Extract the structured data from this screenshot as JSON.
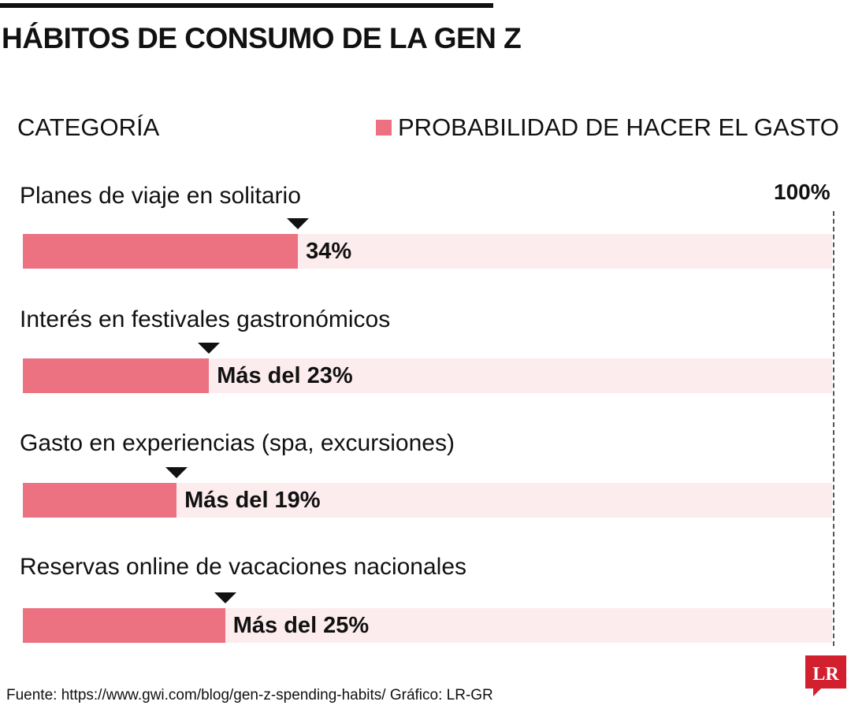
{
  "title": "HÁBITOS DE CONSUMO DE LA GEN Z",
  "colors": {
    "fill": "#ec7282",
    "track": "#fcecee",
    "marker": "#111111",
    "logo": "#d3202f"
  },
  "chart_data": {
    "type": "bar",
    "orientation": "horizontal",
    "category_header": "CATEGORÍA",
    "legend": "PROBABILIDAD DE HACER EL GASTO",
    "max_label": "100%",
    "xlim": [
      0,
      100
    ],
    "categories": [
      "Planes de viaje en solitario",
      "Interés en festivales gastronómicos",
      "Gasto en experiencias (spa, excursiones)",
      "Reservas online de vacaciones nacionales"
    ],
    "values": [
      34,
      23,
      19,
      25
    ],
    "value_labels": [
      "34%",
      "Más del 23%",
      "Más del 19%",
      "Más del 25%"
    ]
  },
  "source": "Fuente: https://www.gwi.com/blog/gen-z-spending-habits/ Gráfico: LR-GR",
  "logo_text": "LR"
}
